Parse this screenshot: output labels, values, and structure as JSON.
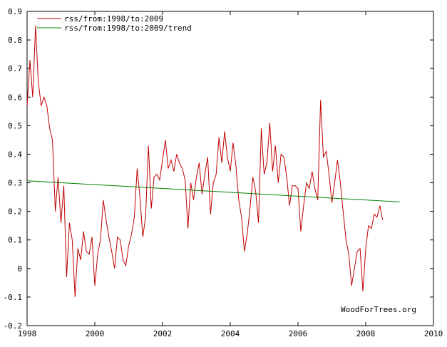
{
  "chart_data": {
    "type": "line",
    "title": "",
    "xlabel": "",
    "ylabel": "",
    "xlim": [
      1998,
      2010
    ],
    "ylim": [
      -0.2,
      0.9
    ],
    "x_ticks": [
      "1998",
      "2000",
      "2002",
      "2004",
      "2006",
      "2008",
      "2010"
    ],
    "y_ticks": [
      "-0.2",
      "-0.1",
      "0",
      "0.1",
      "0.2",
      "0.3",
      "0.4",
      "0.5",
      "0.6",
      "0.7",
      "0.8",
      "0.9"
    ],
    "grid": false,
    "legend_position": "top-left",
    "credit": "WoodForTrees.org",
    "series": [
      {
        "name": "rss/from:1998/to:2009",
        "color": "#c00000",
        "x_start": 1998.0,
        "x_step": 0.08333,
        "values": [
          0.57,
          0.73,
          0.6,
          0.85,
          0.65,
          0.57,
          0.6,
          0.57,
          0.49,
          0.45,
          0.2,
          0.32,
          0.16,
          0.29,
          -0.03,
          0.16,
          0.1,
          -0.1,
          0.07,
          0.03,
          0.13,
          0.06,
          0.05,
          0.11,
          -0.06,
          0.05,
          0.1,
          0.24,
          0.17,
          0.11,
          0.06,
          0.0,
          0.11,
          0.1,
          0.03,
          0.01,
          0.08,
          0.12,
          0.18,
          0.35,
          0.25,
          0.11,
          0.18,
          0.43,
          0.21,
          0.32,
          0.33,
          0.31,
          0.38,
          0.45,
          0.35,
          0.38,
          0.34,
          0.4,
          0.37,
          0.35,
          0.31,
          0.14,
          0.3,
          0.24,
          0.32,
          0.37,
          0.26,
          0.33,
          0.39,
          0.19,
          0.3,
          0.33,
          0.46,
          0.37,
          0.48,
          0.39,
          0.34,
          0.44,
          0.36,
          0.24,
          0.18,
          0.06,
          0.12,
          0.21,
          0.32,
          0.27,
          0.16,
          0.49,
          0.33,
          0.37,
          0.51,
          0.34,
          0.43,
          0.3,
          0.4,
          0.39,
          0.32,
          0.22,
          0.29,
          0.29,
          0.28,
          0.13,
          0.22,
          0.3,
          0.28,
          0.34,
          0.28,
          0.24,
          0.59,
          0.39,
          0.41,
          0.33,
          0.23,
          0.3,
          0.38,
          0.3,
          0.2,
          0.1,
          0.05,
          -0.06,
          0.0,
          0.06,
          0.07,
          -0.08,
          0.07,
          0.15,
          0.14,
          0.19,
          0.18,
          0.22,
          0.17
        ]
      },
      {
        "name": "rss/from:1998/to:2009/trend",
        "color": "#008000",
        "x": [
          1998.0,
          2009.0
        ],
        "values": [
          0.307,
          0.233
        ]
      }
    ]
  }
}
